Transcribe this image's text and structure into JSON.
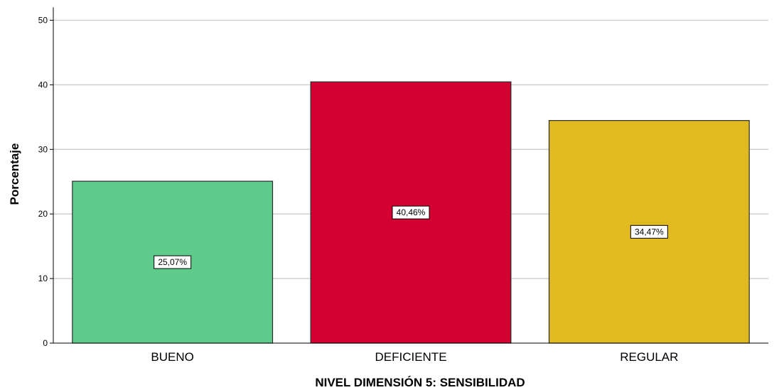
{
  "chart_data": {
    "type": "bar",
    "categories": [
      "BUENO",
      "DEFICIENTE",
      "REGULAR"
    ],
    "values": [
      25.07,
      40.46,
      34.47
    ],
    "data_labels": [
      "25,07%",
      "40,46%",
      "34,47%"
    ],
    "colors": [
      "#5ECB8A",
      "#D50032",
      "#E0BA1E"
    ],
    "xlabel": "NIVEL DIMENSIÓN 5: SENSIBILIDAD",
    "ylabel": "Porcentaje",
    "ylim": [
      0,
      52
    ],
    "yticks": [
      "0",
      "10",
      "20",
      "30",
      "40",
      "50"
    ],
    "grid": true,
    "legend": "none"
  }
}
